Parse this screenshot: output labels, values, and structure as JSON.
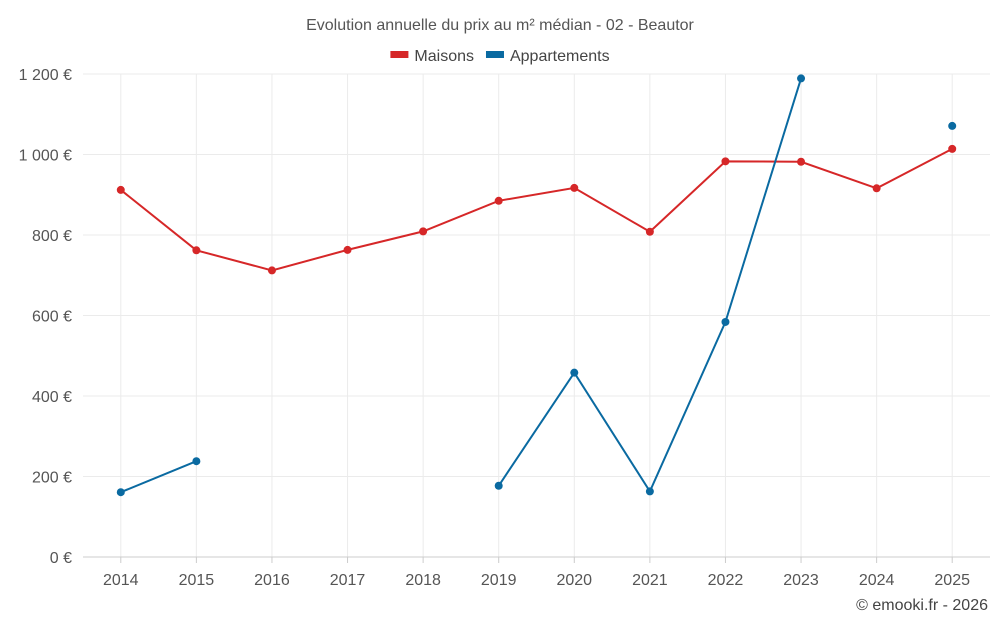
{
  "chart_data": {
    "type": "line",
    "title": "Evolution annuelle du prix au m² médian - 02 - Beautor",
    "categories": [
      "2014",
      "2015",
      "2016",
      "2017",
      "2018",
      "2019",
      "2020",
      "2021",
      "2022",
      "2023",
      "2024",
      "2025"
    ],
    "series": [
      {
        "name": "Maisons",
        "color": "#d62728",
        "values": [
          912,
          762,
          712,
          763,
          809,
          885,
          917,
          808,
          983,
          982,
          916,
          1014
        ]
      },
      {
        "name": "Appartements",
        "color": "#0a6aa1",
        "values": [
          161,
          238,
          null,
          null,
          null,
          177,
          458,
          163,
          584,
          1189,
          null,
          1071
        ]
      }
    ],
    "ylim": [
      0,
      1200
    ],
    "yticks": [
      0,
      200,
      400,
      600,
      800,
      1000,
      1200
    ],
    "ytick_labels": [
      "0 €",
      "200 €",
      "400 €",
      "600 €",
      "800 €",
      "1 000 €",
      "1 200 €"
    ],
    "xlabel": "",
    "ylabel": "",
    "legend_position": "top-center",
    "grid": true
  },
  "footer": {
    "credit": "© emooki.fr - 2026"
  }
}
